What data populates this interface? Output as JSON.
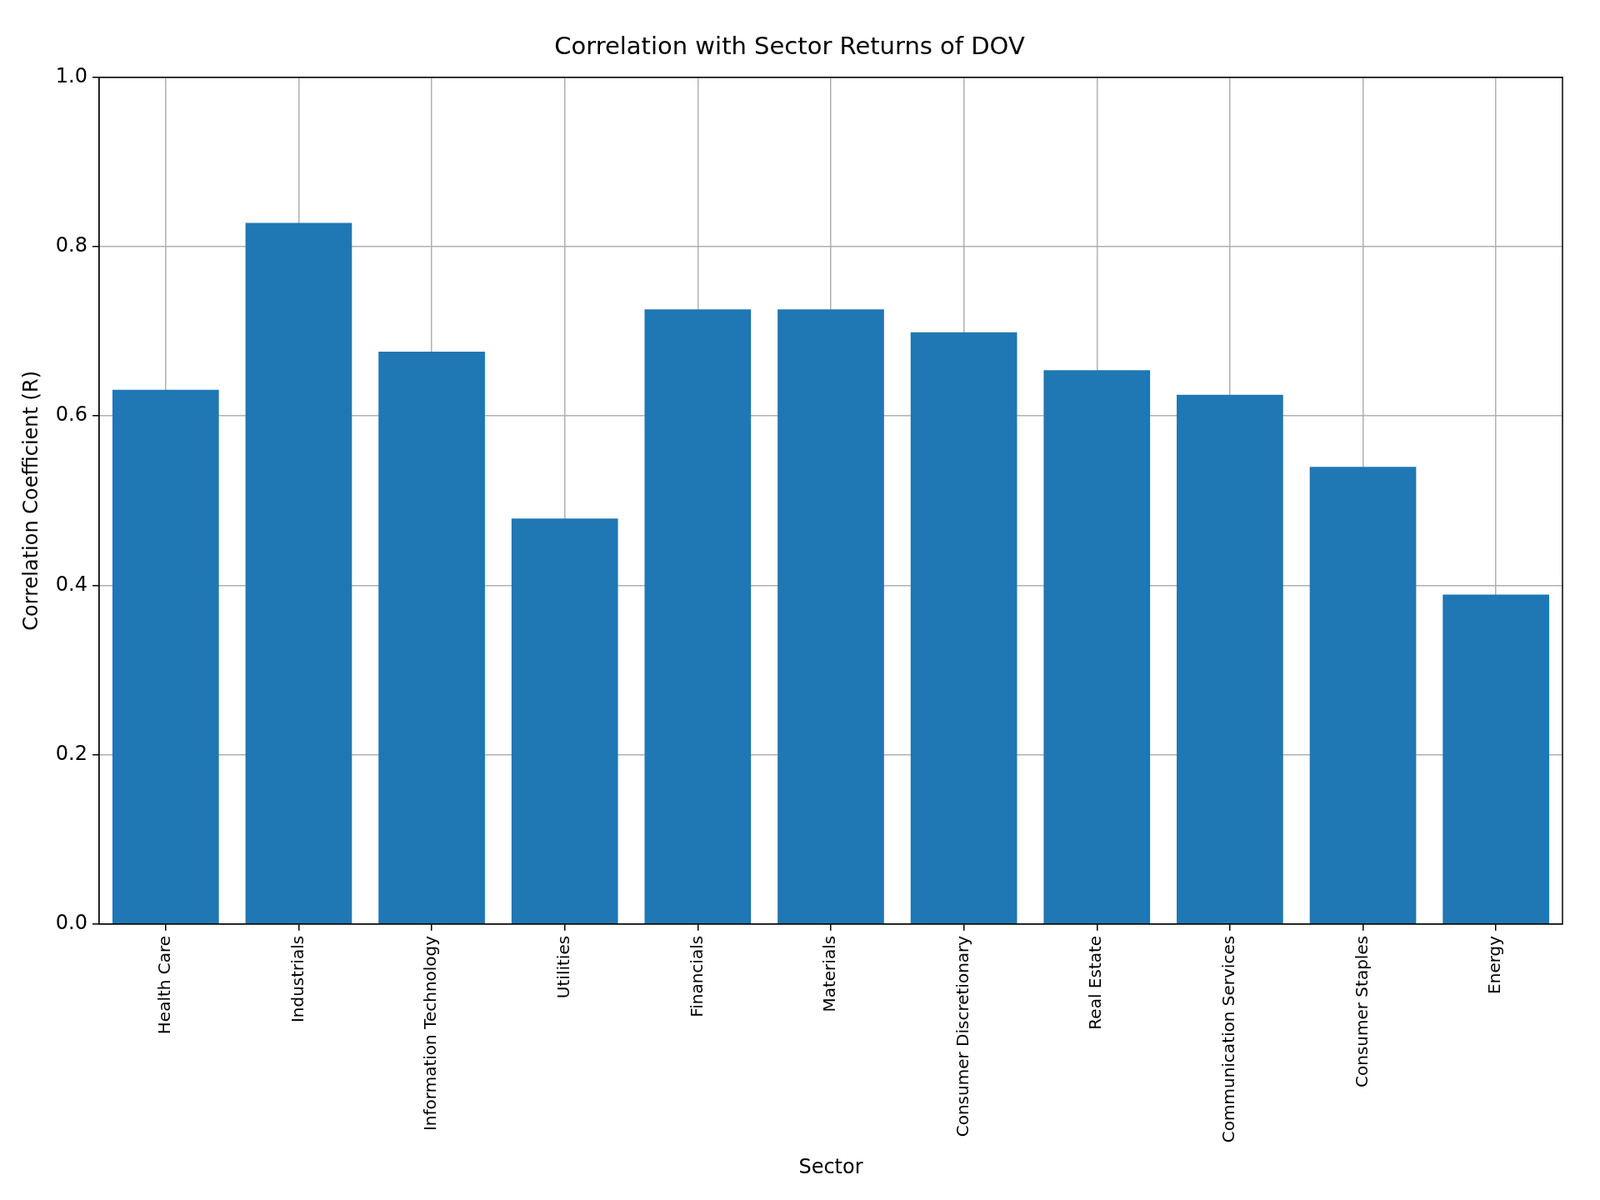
{
  "chart_data": {
    "type": "bar",
    "title": "Correlation with Sector Returns of DOV",
    "x_label": "Sector",
    "y_label": "Correlation Coefficient (R)",
    "categories": [
      "Health Care",
      "Industrials",
      "Information Technology",
      "Utilities",
      "Financials",
      "Materials",
      "Consumer Discretionary",
      "Real Estate",
      "Communication Services",
      "Consumer Staples",
      "Energy"
    ],
    "values": [
      0.631,
      0.828,
      0.676,
      0.479,
      0.726,
      0.726,
      0.699,
      0.654,
      0.625,
      0.54,
      0.389
    ],
    "color": "#1f77b4",
    "ylim": [
      0,
      1
    ],
    "yticks": [
      {
        "value": 0,
        "label": "0.0"
      },
      0.2,
      0.4,
      0.6,
      0.8,
      {
        "value": 1,
        "label": "1.0"
      }
    ],
    "grid": true
  }
}
